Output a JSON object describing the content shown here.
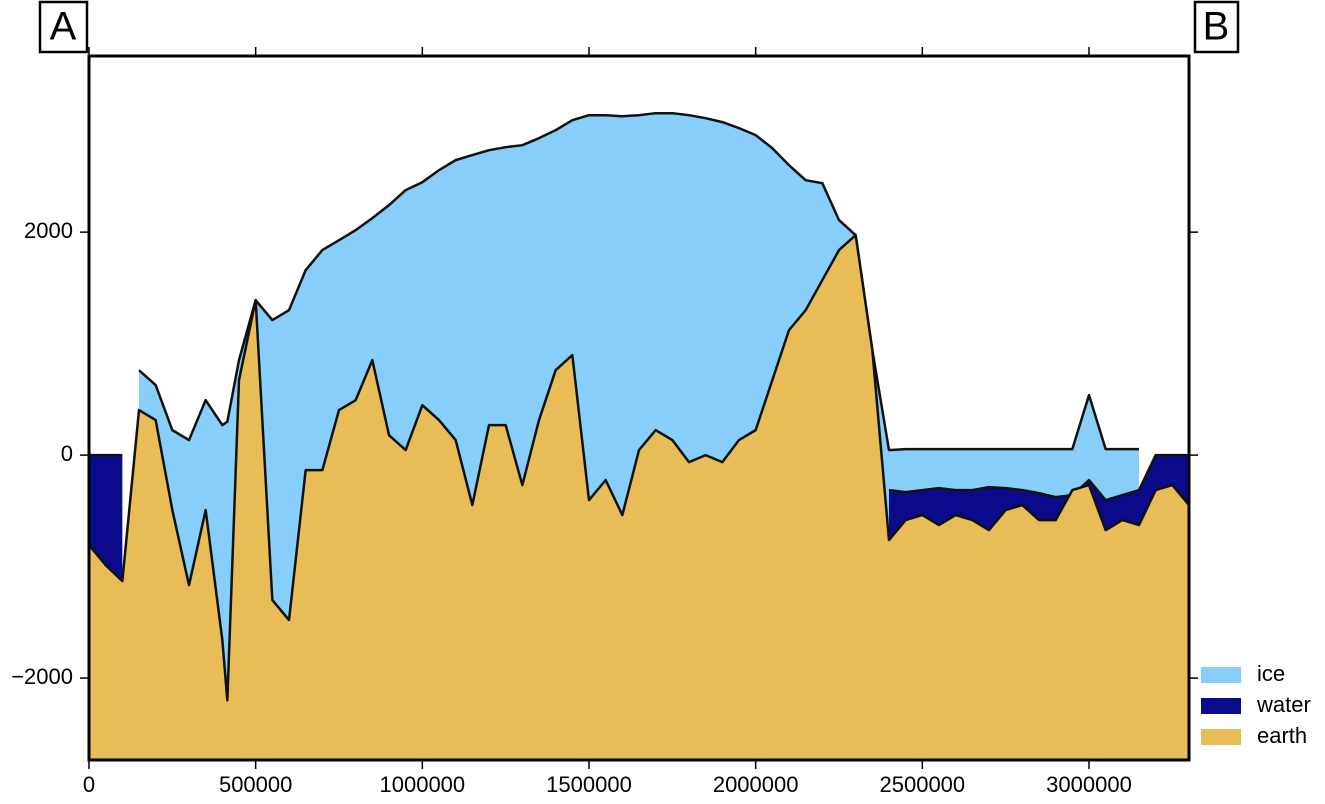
{
  "chart_data": {
    "type": "area",
    "annotations": [
      "A",
      "B"
    ],
    "x": [
      0,
      50000,
      100000,
      150000,
      200000,
      250000,
      300000,
      350000,
      400000,
      415000,
      450000,
      500000,
      550000,
      600000,
      650000,
      700000,
      750000,
      800000,
      850000,
      900000,
      950000,
      1000000,
      1050000,
      1100000,
      1150000,
      1200000,
      1250000,
      1300000,
      1350000,
      1400000,
      1450000,
      1500000,
      1550000,
      1600000,
      1650000,
      1700000,
      1750000,
      1800000,
      1850000,
      1900000,
      1950000,
      2000000,
      2050000,
      2100000,
      2150000,
      2200000,
      2250000,
      2300000,
      2350000,
      2400000,
      2450000,
      2500000,
      2550000,
      2600000,
      2650000,
      2700000,
      2750000,
      2800000,
      2850000,
      2900000,
      2950000,
      3000000,
      3050000,
      3100000,
      3150000,
      3200000,
      3250000,
      3300000
    ],
    "series": [
      {
        "name": "ice",
        "color": "#87cefa",
        "values": [
          null,
          null,
          null,
          762,
          628,
          224,
          135,
          493,
          269,
          300,
          852,
          1390,
          1211,
          1300,
          1659,
          1839,
          1928,
          2018,
          2126,
          2242,
          2377,
          2448,
          2556,
          2646,
          2691,
          2735,
          2762,
          2780,
          2843,
          2915,
          3004,
          3049,
          3049,
          3040,
          3049,
          3067,
          3067,
          3049,
          3022,
          2987,
          2933,
          2870,
          2753,
          2601,
          2466,
          2439,
          2108,
          1973,
          942,
          45,
          54,
          54,
          54,
          54,
          54,
          54,
          54,
          54,
          54,
          54,
          54,
          538,
          54,
          54,
          54,
          null,
          null,
          null
        ]
      },
      {
        "name": "water",
        "color": "#0a0a8a",
        "values": [
          0,
          0,
          0,
          null,
          null,
          null,
          null,
          null,
          null,
          null,
          null,
          null,
          null,
          null,
          null,
          null,
          null,
          null,
          null,
          null,
          null,
          null,
          null,
          null,
          null,
          null,
          null,
          null,
          null,
          null,
          null,
          null,
          null,
          null,
          null,
          null,
          null,
          null,
          null,
          null,
          null,
          null,
          null,
          null,
          null,
          null,
          null,
          null,
          null,
          -314,
          -332,
          -314,
          -296,
          -314,
          -314,
          -287,
          -296,
          -314,
          -341,
          -377,
          -359,
          -224,
          -404,
          -359,
          -314,
          0,
          0,
          0
        ]
      },
      {
        "name": "earth",
        "color": "#e8bd58",
        "values": [
          -807,
          -987,
          -1130,
          404,
          314,
          -493,
          -1166,
          -493,
          -1659,
          -2200,
          673,
          1390,
          -1300,
          -1480,
          -135,
          -135,
          404,
          493,
          852,
          179,
          45,
          448,
          314,
          135,
          -448,
          269,
          269,
          -269,
          314,
          762,
          897,
          -404,
          -224,
          -538,
          45,
          224,
          135,
          -63,
          0,
          -63,
          135,
          224,
          673,
          1121,
          1300,
          1570,
          1839,
          1973,
          942,
          -762,
          -583,
          -538,
          -628,
          -538,
          -583,
          -673,
          -493,
          -448,
          -583,
          -583,
          -314,
          -269,
          -673,
          -583,
          -628,
          -314,
          -269,
          -448
        ]
      }
    ],
    "xlim": [
      0,
      3300000
    ],
    "ylim": [
      -2735,
      3580
    ],
    "xticks": [
      0,
      500000,
      1000000,
      1500000,
      2000000,
      2500000,
      3000000
    ],
    "yticks": [
      {
        "value": -2000,
        "label": "−2000"
      },
      0,
      2000
    ]
  }
}
